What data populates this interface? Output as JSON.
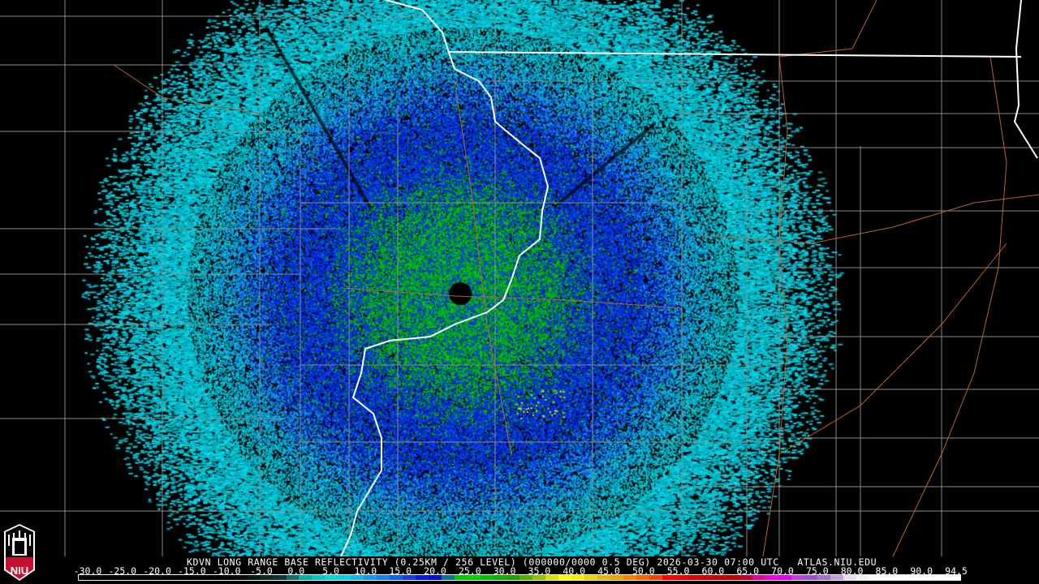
{
  "title": "KDVN LONG RANGE BASE REFLECTIVITY (0.25KM / 256 LEVEL) (000000/0000 0.5 DEG) 2026-03-30 07:00 UTC   ATLAS.NIU.EDU",
  "logo_text": "NIU",
  "scale_labels": [
    "-30.0",
    "-25.0",
    "-20.0",
    "-15.0",
    "-10.0",
    "-5.0",
    "0.0",
    "5.0",
    "10.0",
    "15.0",
    "20.0",
    "25.0",
    "30.0",
    "35.0",
    "40.0",
    "45.0",
    "50.0",
    "55.0",
    "60.0",
    "65.0",
    "70.0",
    "75.0",
    "80.0",
    "85.0",
    "90.0",
    "94.5"
  ],
  "scale_colors": [
    "#000000",
    "#000000",
    "#000000",
    "#000000",
    "#000000",
    "#000000",
    "#000000",
    "#000000",
    "#000000",
    "#000000",
    "#000000",
    "#000000",
    "#030d0d",
    "#061a1a",
    "#0a2a2a",
    "#0d3535",
    "#107070",
    "#00b0b0",
    "#00c8c8",
    "#00d8e0",
    "#00d0f0",
    "#10b8f0",
    "#1098f0",
    "#1080f0",
    "#1060f0",
    "#1040e0",
    "#0020e0",
    "#0010d0",
    "#107090",
    "#00c800",
    "#00d000",
    "#00c000",
    "#10b000",
    "#20a000",
    "#50b000",
    "#90c000",
    "#d8e000",
    "#ffff00",
    "#f8f000",
    "#f0d000",
    "#e8b800",
    "#f0a000",
    "#f88000",
    "#ff6000",
    "#ff4000",
    "#ff0000",
    "#f00000",
    "#e00000",
    "#d00000",
    "#c80000",
    "#c00000",
    "#c00030",
    "#e000a0",
    "#f000e0",
    "#e000f0",
    "#c040e0",
    "#a050d0",
    "#a070d0",
    "#c0a0e0",
    "#e8e0f0",
    "#f4f0f8",
    "#ffffff",
    "#ffffff",
    "#ffffff",
    "#ffffff",
    "#ffffff",
    "#ffffff",
    "#ffffff"
  ],
  "colors": {
    "state_border": "#ffffff",
    "county_lines": "#808080",
    "roads": "#c0602a",
    "green_echo": "#00d000",
    "blue_echo": "#0030e0",
    "cyan_echo": "#00c8e0"
  }
}
